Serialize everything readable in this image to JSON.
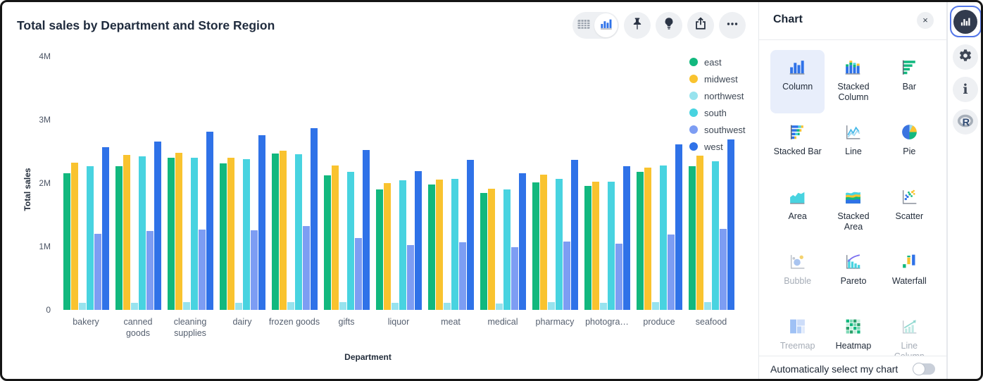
{
  "chart_card": {
    "title": "Total sales by Department and Store Region",
    "toolbar": {
      "segmented": [
        {
          "name": "table-view",
          "icon": "table-icon",
          "selected": false
        },
        {
          "name": "chart-view",
          "icon": "chart-icon",
          "selected": true
        }
      ],
      "buttons": [
        {
          "name": "pin-button",
          "icon": "pin-icon"
        },
        {
          "name": "insights-button",
          "icon": "lightbulb-icon"
        },
        {
          "name": "share-button",
          "icon": "share-icon"
        },
        {
          "name": "more-button",
          "icon": "ellipsis-icon"
        }
      ]
    }
  },
  "chart_data": {
    "type": "bar",
    "title": "Total sales by Department and Store Region",
    "xlabel": "Department",
    "ylabel": "Total sales",
    "ylim": [
      0,
      4000000
    ],
    "yticks": [
      "0",
      "1M",
      "2M",
      "3M",
      "4M"
    ],
    "grid": false,
    "legend_position": "right",
    "categories": [
      "bakery",
      "canned goods",
      "cleaning supplies",
      "dairy",
      "frozen goods",
      "gifts",
      "liquor",
      "meat",
      "medical",
      "pharmacy",
      "photogra…",
      "produce",
      "seafood"
    ],
    "series": [
      {
        "name": "east",
        "color": "#12b87e",
        "values": [
          2.15,
          2.27,
          2.4,
          2.31,
          2.47,
          2.12,
          1.9,
          1.98,
          1.84,
          2.01,
          1.96,
          2.18,
          2.27
        ]
      },
      {
        "name": "midwest",
        "color": "#f9c32f",
        "values": [
          2.32,
          2.44,
          2.48,
          2.4,
          2.51,
          2.28,
          2.0,
          2.06,
          1.91,
          2.13,
          2.02,
          2.24,
          2.43
        ]
      },
      {
        "name": "northwest",
        "color": "#97e3ee",
        "values": [
          0.11,
          0.11,
          0.12,
          0.11,
          0.12,
          0.12,
          0.11,
          0.11,
          0.1,
          0.12,
          0.11,
          0.12,
          0.12
        ]
      },
      {
        "name": "south",
        "color": "#48d3e0",
        "values": [
          2.27,
          2.42,
          2.4,
          2.38,
          2.45,
          2.18,
          2.05,
          2.07,
          1.9,
          2.07,
          2.02,
          2.28,
          2.34
        ]
      },
      {
        "name": "southwest",
        "color": "#7d9df3",
        "values": [
          1.2,
          1.24,
          1.27,
          1.25,
          1.32,
          1.13,
          1.02,
          1.07,
          0.99,
          1.08,
          1.04,
          1.19,
          1.28
        ]
      },
      {
        "name": "west",
        "color": "#2f72e8",
        "values": [
          2.57,
          2.65,
          2.81,
          2.76,
          2.87,
          2.52,
          2.19,
          2.37,
          2.16,
          2.37,
          2.27,
          2.61,
          2.69
        ]
      }
    ],
    "value_unit": "M"
  },
  "panel": {
    "title": "Chart",
    "close_label": "×",
    "types": [
      {
        "label": "Column",
        "icon": "column",
        "state": "selected"
      },
      {
        "label": "Stacked Column",
        "icon": "stacked_column",
        "state": "normal"
      },
      {
        "label": "Bar",
        "icon": "bar",
        "state": "normal"
      },
      {
        "label": "Stacked Bar",
        "icon": "stacked_bar",
        "state": "normal"
      },
      {
        "label": "Line",
        "icon": "line",
        "state": "normal"
      },
      {
        "label": "Pie",
        "icon": "pie",
        "state": "normal"
      },
      {
        "label": "Area",
        "icon": "area",
        "state": "normal"
      },
      {
        "label": "Stacked Area",
        "icon": "stacked_area",
        "state": "normal"
      },
      {
        "label": "Scatter",
        "icon": "scatter",
        "state": "normal"
      },
      {
        "label": "Bubble",
        "icon": "bubble",
        "state": "disabled"
      },
      {
        "label": "Pareto",
        "icon": "pareto",
        "state": "normal"
      },
      {
        "label": "Waterfall",
        "icon": "waterfall",
        "state": "normal"
      },
      {
        "label": "Treemap",
        "icon": "treemap",
        "state": "disabled"
      },
      {
        "label": "Heatmap",
        "icon": "heatmap",
        "state": "normal"
      },
      {
        "label": "Line Column",
        "icon": "line_column",
        "state": "disabled"
      }
    ],
    "footer": {
      "label": "Automatically select my chart",
      "toggle_on": false
    }
  },
  "sidebar": {
    "items": [
      {
        "name": "chart-panel-tab",
        "icon": "chart-icon",
        "selected": true
      },
      {
        "name": "settings-panel-tab",
        "icon": "gear-icon",
        "selected": false
      },
      {
        "name": "info-panel-tab",
        "icon": "info-icon",
        "selected": false
      },
      {
        "name": "r-panel-tab",
        "icon": "r-logo-icon",
        "selected": false
      }
    ]
  },
  "colors": {
    "selected_cell_bg": "#e8eefb",
    "accent_blue": "#2f72e8",
    "icon_dark": "#323b4e"
  }
}
